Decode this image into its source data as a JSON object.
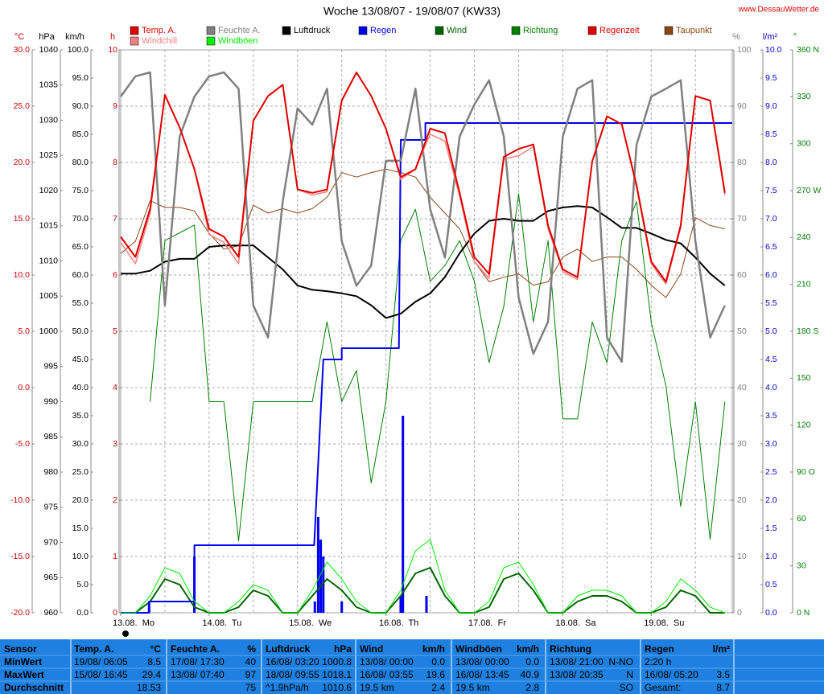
{
  "chart_data": {
    "type": "line",
    "title": "Woche 13/08/07 - 19/08/07 (KW33)",
    "source": "www.DessauWetter.de",
    "x": [
      0,
      4,
      8,
      12,
      16,
      20,
      24,
      28,
      32,
      36,
      40,
      44,
      48,
      52,
      56,
      60,
      64,
      68,
      72,
      76,
      80,
      84,
      88,
      92,
      96,
      100,
      104,
      108,
      112,
      116,
      120,
      124,
      128,
      132,
      136,
      140,
      144,
      148,
      152,
      156,
      160,
      164
    ],
    "xlim": [
      0,
      166
    ],
    "xticks": [
      {
        "value": 0,
        "label": "13.08.  Mo"
      },
      {
        "value": 24,
        "label": "14.08.  Tu"
      },
      {
        "value": 48,
        "label": "15.08.  We"
      },
      {
        "value": 72,
        "label": "16.08.  Th"
      },
      {
        "value": 96,
        "label": "17.08.  Fr"
      },
      {
        "value": 120,
        "label": "18.08.  Sa"
      },
      {
        "value": 144,
        "label": "19.08.  Su"
      }
    ],
    "xgrid": [
      12,
      36,
      60,
      84,
      108,
      132,
      156
    ],
    "axes": [
      {
        "unit": "°C",
        "lim": [
          -20,
          30
        ],
        "color": "#cc0000",
        "zero_line": "#dd0000",
        "ticks": [
          {
            "value": 30,
            "label": "30.0"
          },
          {
            "value": 25,
            "label": "25.0"
          },
          {
            "value": 20,
            "label": "20.0"
          },
          {
            "value": 15,
            "label": "15.0"
          },
          {
            "value": 10,
            "label": "10.0"
          },
          {
            "value": 5,
            "label": "5.0"
          },
          {
            "value": 0,
            "label": "0.0"
          },
          {
            "value": -5,
            "label": "-5.0"
          },
          {
            "value": -10,
            "label": "-10.0"
          },
          {
            "value": -15,
            "label": "-15.0"
          },
          {
            "value": -20,
            "label": "-20.0"
          }
        ]
      },
      {
        "unit": "hPa",
        "lim": [
          960,
          1040
        ],
        "color": "#000000",
        "ticks": [
          1040,
          1035,
          1030,
          1025,
          1020,
          1015,
          1010,
          1005,
          1000,
          995,
          990,
          985,
          980,
          975,
          970,
          965,
          960
        ]
      },
      {
        "unit": "km/h",
        "lim": [
          0,
          100
        ],
        "color": "#000000",
        "ticks": [
          {
            "value": 100,
            "label": "100.0"
          },
          {
            "value": 95,
            "label": "95.0"
          },
          {
            "value": 90,
            "label": "90.0"
          },
          {
            "value": 85,
            "label": "85.0"
          },
          {
            "value": 80,
            "label": "80.0"
          },
          {
            "value": 75,
            "label": "75.0"
          },
          {
            "value": 70,
            "label": "70.0"
          },
          {
            "value": 65,
            "label": "65.0"
          },
          {
            "value": 60,
            "label": "60.0"
          },
          {
            "value": 55,
            "label": "55.0"
          },
          {
            "value": 50,
            "label": "50.0"
          },
          {
            "value": 45,
            "label": "45.0"
          },
          {
            "value": 40,
            "label": "40.0"
          },
          {
            "value": 35,
            "label": "35.0"
          },
          {
            "value": 30,
            "label": "30.0"
          },
          {
            "value": 25,
            "label": "25.0"
          },
          {
            "value": 20,
            "label": "20.0"
          },
          {
            "value": 15,
            "label": "15.0"
          },
          {
            "value": 10,
            "label": "10.0"
          },
          {
            "value": 5,
            "label": "5.0"
          },
          {
            "value": 0,
            "label": "0.0"
          }
        ]
      },
      {
        "unit": "h",
        "lim": [
          0,
          10
        ],
        "color": "#cc0000",
        "grid": true,
        "ticks": [
          10,
          9,
          8,
          7,
          6,
          5,
          4,
          3,
          2,
          1,
          0
        ]
      },
      {
        "unit": "%",
        "lim": [
          0,
          100
        ],
        "color": "#808080",
        "ticks": [
          100,
          90,
          80,
          70,
          60,
          50,
          40,
          30,
          20,
          10,
          0
        ]
      },
      {
        "unit": "l/m²",
        "lim": [
          0,
          10
        ],
        "color": "#0000cc",
        "ticks": [
          {
            "value": 10,
            "label": "10.0"
          },
          {
            "value": 9.5,
            "label": "9.5"
          },
          {
            "value": 9,
            "label": "9.0"
          },
          {
            "value": 8.5,
            "label": "8.5"
          },
          {
            "value": 8,
            "label": "8.0"
          },
          {
            "value": 7.5,
            "label": "7.5"
          },
          {
            "value": 7,
            "label": "7.0"
          },
          {
            "value": 6.5,
            "label": "6.5"
          },
          {
            "value": 6,
            "label": "6.0"
          },
          {
            "value": 5.5,
            "label": "5.5"
          },
          {
            "value": 5,
            "label": "5.0"
          },
          {
            "value": 4.5,
            "label": "4.5"
          },
          {
            "value": 4,
            "label": "4.0"
          },
          {
            "value": 3.5,
            "label": "3.5"
          },
          {
            "value": 3,
            "label": "3.0"
          },
          {
            "value": 2.5,
            "label": "2.5"
          },
          {
            "value": 2,
            "label": "2.0"
          },
          {
            "value": 1.5,
            "label": "1.5"
          },
          {
            "value": 1,
            "label": "1.0"
          },
          {
            "value": 0.5,
            "label": "0.5"
          },
          {
            "value": 0,
            "label": "0.0"
          }
        ]
      },
      {
        "unit": "°",
        "lim": [
          0,
          360
        ],
        "color": "#008000",
        "ticks": [
          {
            "value": 360,
            "label": "360 N"
          },
          330,
          300,
          {
            "value": 270,
            "label": "270 W"
          },
          240,
          210,
          {
            "value": 180,
            "label": "180 S"
          },
          150,
          120,
          {
            "value": 90,
            "label": "90 O"
          },
          60,
          30,
          {
            "value": 0,
            "label": "0 N"
          }
        ]
      }
    ],
    "series": [
      {
        "name": "Temp. A.",
        "color": "#e00000",
        "axis": "°C",
        "values": [
          13.4,
          11.6,
          15.9,
          26.0,
          23.1,
          19.4,
          14.1,
          13.4,
          11.6,
          23.7,
          25.9,
          26.9,
          17.6,
          17.3,
          17.6,
          25.5,
          28.0,
          25.9,
          23.0,
          18.7,
          19.4,
          23.0,
          22.6,
          17.3,
          11.6,
          10.1,
          20.5,
          21.2,
          21.6,
          14.4,
          10.5,
          9.8,
          20.1,
          24.1,
          23.4,
          18.0,
          11.2,
          9.4,
          14.4,
          25.9,
          25.5,
          17.3
        ]
      },
      {
        "name": "Windchill",
        "color": "#f08080",
        "axis": "°C",
        "values": [
          12.9,
          11.0,
          15.5,
          26.0,
          23.1,
          19.4,
          13.6,
          12.9,
          11.0,
          23.7,
          25.9,
          26.9,
          17.6,
          17.1,
          17.4,
          25.5,
          28.0,
          25.9,
          23.0,
          18.5,
          19.4,
          22.5,
          21.9,
          17.0,
          11.2,
          9.7,
          20.3,
          20.6,
          21.4,
          14.1,
          10.3,
          9.6,
          20.1,
          24.1,
          23.4,
          17.8,
          11.0,
          9.2,
          14.2,
          25.9,
          25.5,
          17.1
        ]
      },
      {
        "name": "Feuchte A.",
        "color": "#808080",
        "axis": "%",
        "values": [
          91.7,
          95.3,
          96.0,
          54.6,
          84.6,
          91.7,
          95.3,
          96.0,
          93.1,
          54.6,
          48.9,
          73.1,
          89.6,
          86.7,
          93.1,
          66.0,
          58.1,
          61.7,
          80.3,
          80.3,
          93.1,
          71.7,
          63.1,
          84.6,
          90.3,
          94.6,
          84.6,
          56.0,
          46.0,
          51.7,
          84.6,
          93.1,
          94.6,
          48.9,
          44.6,
          83.1,
          91.7,
          93.1,
          94.6,
          66.0,
          48.9,
          54.6
        ]
      },
      {
        "name": "Windböen",
        "color": "#00ee00",
        "axis": "km/h",
        "values": [
          0,
          0,
          3,
          8,
          7,
          2,
          0,
          0,
          2,
          5,
          4,
          0,
          0,
          4,
          9,
          6,
          2,
          0,
          0,
          4,
          11,
          13,
          4,
          0,
          0,
          2,
          8,
          9,
          5,
          0,
          0,
          3,
          4,
          4,
          3,
          0,
          0,
          2,
          6,
          4,
          1,
          0
        ]
      },
      {
        "name": "Luftdruck",
        "color": "#000000",
        "axis": "hPa",
        "values": [
          1008.2,
          1008.2,
          1008.6,
          1009.9,
          1010.3,
          1010.3,
          1012.0,
          1012.2,
          1012.2,
          1012.2,
          1010.5,
          1008.8,
          1006.5,
          1005.9,
          1005.7,
          1005.4,
          1005.0,
          1003.7,
          1001.9,
          1002.5,
          1004.2,
          1005.4,
          1007.7,
          1011.1,
          1013.9,
          1015.7,
          1016.0,
          1015.7,
          1015.7,
          1017.1,
          1017.6,
          1017.8,
          1017.6,
          1016.2,
          1014.7,
          1014.7,
          1013.9,
          1013.0,
          1012.5,
          1010.5,
          1008.2,
          1006.5
        ]
      },
      {
        "name": "Regen",
        "color": "#0000ee",
        "axis": "l/m²",
        "x": [
          0,
          7.7,
          7.7,
          20,
          20,
          52.5,
          55,
          60,
          60,
          75.5,
          76,
          82.7,
          82.7,
          166
        ],
        "values": [
          0,
          0,
          0.2,
          0.2,
          1.2,
          1.2,
          4.5,
          4.5,
          4.7,
          4.7,
          8.4,
          8.4,
          8.7,
          8.7
        ]
      },
      {
        "name": "Wind",
        "color": "#006400",
        "axis": "km/h",
        "values": [
          0,
          0,
          2,
          6,
          5,
          1,
          0,
          0,
          1,
          4,
          3,
          0,
          0,
          3,
          6,
          4,
          1,
          0,
          0,
          3,
          7,
          8,
          3,
          0,
          0,
          1,
          6,
          7,
          4,
          0,
          0,
          2,
          3,
          3,
          2,
          0,
          0,
          1,
          4,
          3,
          0,
          0
        ]
      },
      {
        "name": "Richtung",
        "color": "#008000",
        "axis": "°",
        "values": [
          null,
          null,
          135,
          238,
          243,
          248,
          135,
          135,
          46,
          135,
          135,
          135,
          135,
          135,
          186,
          135,
          155,
          83,
          135,
          238,
          258,
          212,
          222,
          238,
          212,
          160,
          196,
          268,
          186,
          238,
          124,
          124,
          186,
          160,
          238,
          263,
          186,
          145,
          68,
          135,
          47,
          135
        ]
      },
      {
        "name": "Regenzeit",
        "type": "bar",
        "color": "#0000ee",
        "legend_color": "#e00000",
        "axis": "h",
        "x": [
          7.7,
          20,
          52.7,
          53.6,
          54.3,
          55,
          60,
          76,
          76.6,
          83
        ],
        "values": [
          0.2,
          1.0,
          0.2,
          1.7,
          1.3,
          1.0,
          0.2,
          0.3,
          3.5,
          0.3
        ]
      },
      {
        "name": "Taupunkt",
        "color": "#8b4513",
        "axis": "°C",
        "values": [
          11.9,
          13.0,
          16.6,
          16.0,
          16.0,
          15.7,
          13.7,
          12.3,
          12.6,
          16.2,
          15.5,
          15.9,
          15.5,
          15.9,
          16.9,
          19.1,
          18.7,
          19.1,
          19.4,
          19.1,
          18.7,
          16.9,
          15.5,
          14.1,
          11.2,
          9.4,
          9.8,
          10.1,
          9.1,
          9.4,
          11.6,
          12.3,
          11.2,
          11.6,
          11.6,
          10.5,
          9.1,
          8.0,
          10.1,
          15.1,
          14.4,
          14.1
        ]
      }
    ]
  },
  "table": {
    "groups": [
      {
        "title": "Sensor",
        "rows": [
          [
            "MinWert"
          ],
          [
            "MaxWert"
          ],
          [
            "Durchschnitt"
          ]
        ]
      },
      {
        "title": "Temp. A.",
        "unit": "°C",
        "rows": [
          [
            "19/08/ 06:05",
            "8.5"
          ],
          [
            "15/08/ 16:45",
            "29.4"
          ],
          [
            "18.53"
          ]
        ]
      },
      {
        "title": "Feuchte A.",
        "unit": "%",
        "rows": [
          [
            "17/08/ 17:30",
            "40"
          ],
          [
            "13/08/ 07:40",
            "97"
          ],
          [
            "75"
          ]
        ]
      },
      {
        "title": "Luftdruck",
        "unit": "hPa",
        "rows": [
          [
            "16/08/ 03:20",
            "1000.8"
          ],
          [
            "18/08/ 09:55",
            "1018.1"
          ],
          [
            "^1.9hPa/h",
            "1010.6"
          ]
        ]
      },
      {
        "title": "Wind",
        "unit": "km/h",
        "rows": [
          [
            "13/08/ 00:00",
            "0.0"
          ],
          [
            "16/08/ 03:55",
            "19.6"
          ],
          [
            "19.5 km",
            "2.4"
          ]
        ]
      },
      {
        "title": "Windböen",
        "unit": "km/h",
        "rows": [
          [
            "13/08/ 00:00",
            "0.0"
          ],
          [
            "16/08/ 13:45",
            "40.9"
          ],
          [
            "19.5 km",
            "2.8"
          ]
        ]
      },
      {
        "title": "Richtung",
        "rows": [
          [
            "13/08/ 21:00",
            "N-NO"
          ],
          [
            "13/08/ 20:35",
            "N"
          ],
          [
            "SO"
          ]
        ]
      },
      {
        "title": "Regen",
        "unit": "l/m²",
        "rows": [
          [
            "2:20 h"
          ],
          [
            "16/08/ 05:20",
            "3.5"
          ],
          [
            "Gesamt:",
            "8.7"
          ]
        ]
      }
    ]
  }
}
